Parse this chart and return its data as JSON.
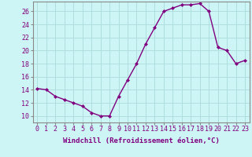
{
  "x": [
    0,
    1,
    2,
    3,
    4,
    5,
    6,
    7,
    8,
    9,
    10,
    11,
    12,
    13,
    14,
    15,
    16,
    17,
    18,
    19,
    20,
    21,
    22,
    23
  ],
  "y": [
    14.2,
    14.0,
    13.0,
    12.5,
    12.0,
    11.5,
    10.5,
    10.0,
    10.0,
    13.0,
    15.5,
    18.0,
    21.0,
    23.5,
    26.0,
    26.5,
    27.0,
    27.0,
    27.2,
    26.0,
    20.5,
    20.0,
    18.0,
    18.5
  ],
  "line_color": "#800080",
  "marker": "D",
  "marker_size": 2.0,
  "line_width": 1.0,
  "bg_color": "#cef5f5",
  "grid_color": "#b0dede",
  "xlabel": "Windchill (Refroidissement éolien,°C)",
  "xlabel_fontsize": 6.5,
  "tick_fontsize": 6.0,
  "ylim": [
    9.0,
    27.5
  ],
  "yticks": [
    10,
    12,
    14,
    16,
    18,
    20,
    22,
    24,
    26
  ],
  "xlim": [
    -0.5,
    23.5
  ],
  "spine_color": "#888888"
}
